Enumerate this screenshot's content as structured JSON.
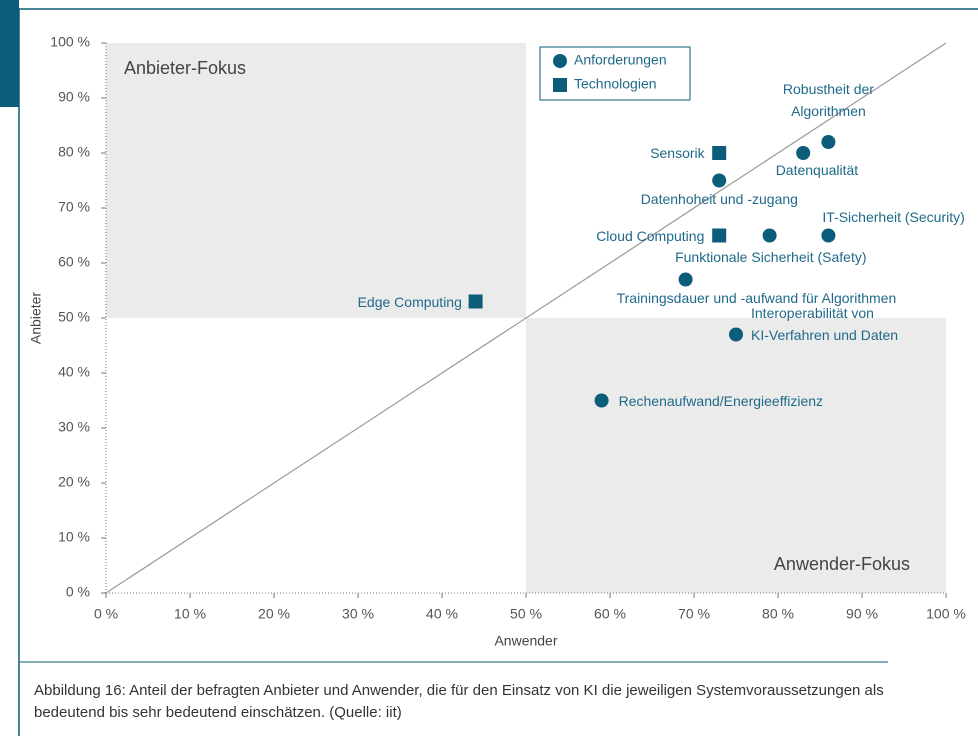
{
  "chart_data": {
    "type": "scatter",
    "xlabel": "Anwender",
    "ylabel": "Anbieter",
    "xlim": [
      0,
      100
    ],
    "ylim": [
      0,
      100
    ],
    "xticks": [
      {
        "value": 0,
        "label": "0 %"
      },
      {
        "value": 10,
        "label": "10 %"
      },
      {
        "value": 20,
        "label": "20 %"
      },
      {
        "value": 30,
        "label": "30 %"
      },
      {
        "value": 40,
        "label": "40 %"
      },
      {
        "value": 50,
        "label": "50 %"
      },
      {
        "value": 60,
        "label": "60 %"
      },
      {
        "value": 70,
        "label": "70 %"
      },
      {
        "value": 80,
        "label": "80 %"
      },
      {
        "value": 90,
        "label": "90 %"
      },
      {
        "value": 100,
        "label": "100 %"
      }
    ],
    "yticks": [
      {
        "value": 0,
        "label": "0 %"
      },
      {
        "value": 10,
        "label": "10 %"
      },
      {
        "value": 20,
        "label": "20 %"
      },
      {
        "value": 30,
        "label": "30 %"
      },
      {
        "value": 40,
        "label": "40 %"
      },
      {
        "value": 50,
        "label": "50 %"
      },
      {
        "value": 60,
        "label": "60 %"
      },
      {
        "value": 70,
        "label": "70 %"
      },
      {
        "value": 80,
        "label": "80 %"
      },
      {
        "value": 90,
        "label": "90 %"
      },
      {
        "value": 100,
        "label": "100 %"
      }
    ],
    "annotations": [
      "Anbieter-Fokus",
      "Anwender-Fokus"
    ],
    "legend": "top-center",
    "series": [
      {
        "name": "Anforderungen",
        "marker": "circle",
        "color": "#0b5d7a",
        "x": [
          86,
          83,
          73,
          86,
          79,
          69,
          75,
          59
        ],
        "values": [
          82,
          80,
          75,
          65,
          65,
          57,
          47,
          35
        ],
        "labels": [
          "Robustheit der\nAlgorithmen",
          "Datenqualität",
          "Datenhoheit und -zugang",
          "IT-Sicherheit (Security)",
          "Funktionale Sicherheit (Safety)",
          "Trainingsdauer und -aufwand für Algorithmen",
          "Interoperabilität von\nKI-Verfahren und Daten",
          "Rechenaufwand/Energieeffizienz"
        ]
      },
      {
        "name": "Technologien",
        "marker": "square",
        "color": "#0b5d7a",
        "x": [
          73,
          73,
          44
        ],
        "values": [
          80,
          65,
          53
        ],
        "labels": [
          "Sensorik",
          "Cloud Computing",
          "Edge Computing"
        ]
      }
    ]
  },
  "caption": "Abbildung 16: Anteil der befragten Anbieter und Anwender, die für den Einsatz von KI die jeweiligen Systemvoraussetzungen als bedeutend bis sehr bedeutend einschätzen. (Quelle: iit)"
}
